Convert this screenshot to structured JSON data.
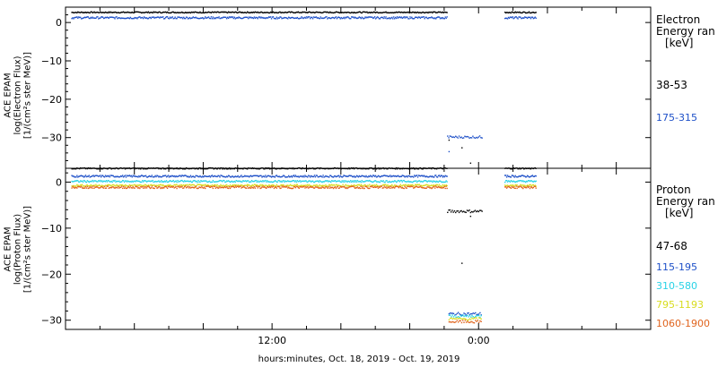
{
  "chart_data": [
    {
      "type": "scatter",
      "panel": "electron",
      "ylabel_lines": [
        "ACE EPAM",
        "log(Electron Flux)",
        "[1/(cm²s ster MeV)]"
      ],
      "legend_title": [
        "Electron",
        "Energy ran",
        "[keV]"
      ],
      "ylim": [
        -38,
        4
      ],
      "yticks": [
        0,
        -10,
        -20,
        -30
      ],
      "xticks": [
        {
          "value": 720,
          "label": "12:00"
        },
        {
          "value": 1440,
          "label": "0:00"
        }
      ],
      "xlim": [
        0,
        2040
      ],
      "gaps": [
        [
          1335,
          1530
        ]
      ],
      "series": [
        {
          "name": "38-53",
          "color": "#000000",
          "level": 2.8,
          "noise": 0.15,
          "segments": [
            [
              20,
              1330
            ],
            [
              1530,
              1640
            ]
          ],
          "gap_points": [
            [
              1335,
              -30.5
            ],
            [
              1380,
              -32.5
            ],
            [
              1410,
              -36.5
            ]
          ]
        },
        {
          "name": "175-315",
          "color": "#1e50c8",
          "level": 1.4,
          "noise": 0.25,
          "segments": [
            [
              20,
              1330
            ],
            [
              1530,
              1640
            ]
          ],
          "gap_points": [
            [
              1335,
              -33.5
            ]
          ],
          "gap_segment": {
            "range": [
              1330,
              1450
            ],
            "level": -29.7
          }
        }
      ]
    },
    {
      "type": "scatter",
      "panel": "proton",
      "ylabel_lines": [
        "ACE EPAM",
        "log(Proton Flux)",
        "[1/(cm²s ster MeV)]"
      ],
      "legend_title": [
        "Proton",
        "Energy ran",
        "[keV]"
      ],
      "ylim": [
        -32,
        3
      ],
      "yticks": [
        0,
        -10,
        -20,
        -30
      ],
      "xticks": [
        {
          "value": 720,
          "label": "12:00"
        },
        {
          "value": 1440,
          "label": "0:00"
        }
      ],
      "xlim": [
        0,
        2040
      ],
      "gaps": [
        [
          1335,
          1530
        ]
      ],
      "series": [
        {
          "name": "47-68",
          "color": "#000000",
          "level": 3.1,
          "noise": 0.12,
          "segments": [
            [
              20,
              1330
            ],
            [
              1530,
              1640
            ]
          ],
          "gap_segment": {
            "range": [
              1330,
              1450
            ],
            "level": -6.2
          },
          "gap_points": [
            [
              1380,
              -17.5
            ],
            [
              1410,
              -7.3
            ]
          ]
        },
        {
          "name": "115-195",
          "color": "#1e50c8",
          "level": 1.4,
          "noise": 0.2,
          "segments": [
            [
              20,
              1330
            ],
            [
              1530,
              1640
            ]
          ],
          "gap_segment": {
            "range": [
              1335,
              1450
            ],
            "level": -28.5
          }
        },
        {
          "name": "310-580",
          "color": "#28d2e6",
          "level": 0.3,
          "noise": 0.2,
          "segments": [
            [
              20,
              1330
            ],
            [
              1530,
              1640
            ]
          ],
          "gap_segment": {
            "range": [
              1335,
              1450
            ],
            "level": -29.0
          }
        },
        {
          "name": "795-1193",
          "color": "#d8dc1e",
          "level": -0.6,
          "noise": 0.2,
          "segments": [
            [
              20,
              1330
            ],
            [
              1530,
              1640
            ]
          ],
          "gap_segment": {
            "range": [
              1335,
              1450
            ],
            "level": -29.6
          }
        },
        {
          "name": "1060-1900",
          "color": "#e0641e",
          "level": -1.0,
          "noise": 0.25,
          "segments": [
            [
              20,
              1330
            ],
            [
              1530,
              1640
            ]
          ],
          "gap_segment": {
            "range": [
              1335,
              1450
            ],
            "level": -30.2
          }
        }
      ]
    }
  ],
  "xlabel": "hours:minutes, Oct. 18, 2019 - Oct. 19, 2019"
}
